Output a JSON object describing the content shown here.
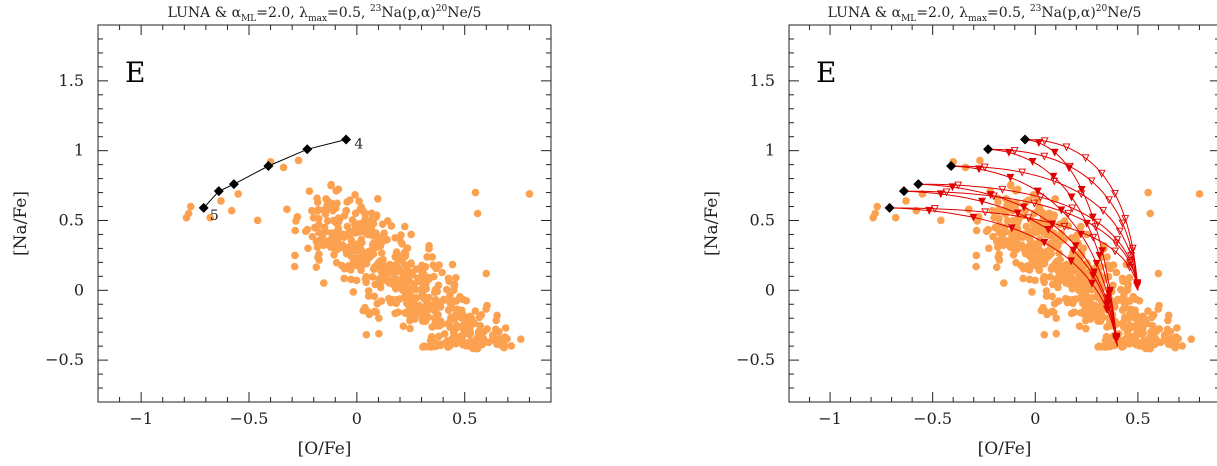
{
  "colors": {
    "observed": "#FBA14F",
    "model": "#000000",
    "diluted": "#E00000",
    "axis": "#222222"
  },
  "chart_data": [
    {
      "type": "scatter",
      "title_parts": [
        "LUNA & α",
        "ML",
        "=2.0, λ",
        "max",
        "=0.5, ",
        "23",
        "Na(p,α)",
        "20",
        "Ne/5"
      ],
      "panel_label": "E",
      "xlabel": "[O/Fe]",
      "ylabel": "[Na/Fe]",
      "xlim": [
        -1.2,
        0.9
      ],
      "ylim": [
        -0.8,
        1.9
      ],
      "xticks": [
        {
          "v": -1,
          "t": "−1"
        },
        {
          "v": -0.5,
          "t": "−0.5"
        },
        {
          "v": 0,
          "t": "0"
        },
        {
          "v": 0.5,
          "t": "0.5"
        }
      ],
      "yticks": [
        {
          "v": -0.5,
          "t": "−0.5"
        },
        {
          "v": 0,
          "t": "0"
        },
        {
          "v": 0.5,
          "t": "0.5"
        },
        {
          "v": 1,
          "t": "1"
        },
        {
          "v": 1.5,
          "t": "1.5"
        }
      ],
      "model_points": [
        {
          "x": -0.05,
          "y": 1.08
        },
        {
          "x": -0.23,
          "y": 1.01
        },
        {
          "x": -0.41,
          "y": 0.89
        },
        {
          "x": -0.57,
          "y": 0.76
        },
        {
          "x": -0.64,
          "y": 0.71
        },
        {
          "x": -0.71,
          "y": 0.59
        }
      ],
      "annotations": [
        {
          "text": "4",
          "x": -0.03,
          "y": 1.05
        },
        {
          "text": "5",
          "x": -0.7,
          "y": 0.54
        }
      ],
      "show_dilution": false
    },
    {
      "type": "scatter",
      "title_parts": [
        "LUNA & α",
        "ML",
        "=2.0, λ",
        "max",
        "=0.5, ",
        "23",
        "Na(p,α)",
        "20",
        "Ne/5"
      ],
      "panel_label": "E",
      "xlabel": "[O/Fe]",
      "ylabel": "[Na/Fe]",
      "xlim": [
        -1.2,
        0.9
      ],
      "ylim": [
        -0.8,
        1.9
      ],
      "xticks": [
        {
          "v": -1,
          "t": "−1"
        },
        {
          "v": -0.5,
          "t": "−0.5"
        },
        {
          "v": 0,
          "t": "0"
        },
        {
          "v": 0.5,
          "t": "0.5"
        }
      ],
      "yticks": [
        {
          "v": -0.5,
          "t": "−0.5"
        },
        {
          "v": 0,
          "t": "0"
        },
        {
          "v": 0.5,
          "t": "0.5"
        },
        {
          "v": 1,
          "t": "1"
        },
        {
          "v": 1.5,
          "t": "1.5"
        }
      ],
      "model_points": [
        {
          "x": -0.05,
          "y": 1.08
        },
        {
          "x": -0.23,
          "y": 1.01
        },
        {
          "x": -0.41,
          "y": 0.89
        },
        {
          "x": -0.57,
          "y": 0.76
        },
        {
          "x": -0.64,
          "y": 0.71
        },
        {
          "x": -0.71,
          "y": 0.59
        }
      ],
      "annotations": [],
      "show_dilution": true,
      "pristine": {
        "x": 0.5,
        "y": 0.0
      },
      "pristine_low": {
        "x": 0.4,
        "y": -0.4
      }
    }
  ]
}
